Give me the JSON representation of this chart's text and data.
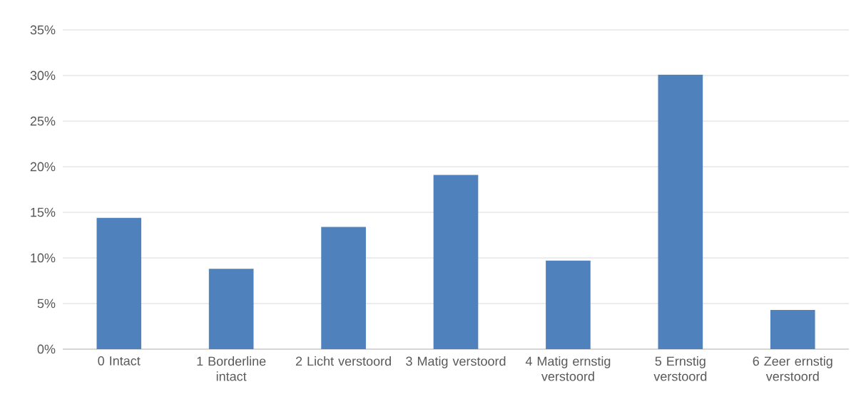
{
  "chart_data": {
    "type": "bar",
    "categories": [
      "0 Intact",
      "1 Borderline intact",
      "2 Licht verstoord",
      "3 Matig verstoord",
      "4 Matig ernstig verstoord",
      "5 Ernstig verstoord",
      "6 Zeer ernstig verstoord"
    ],
    "values": [
      14.4,
      8.8,
      13.4,
      19.1,
      9.7,
      30.1,
      4.3
    ],
    "color": "#4f81bd",
    "ylim": [
      0,
      35
    ],
    "yticks": [
      {
        "value": 0,
        "label": "0%"
      },
      {
        "value": 5,
        "label": "5%"
      },
      {
        "value": 10,
        "label": "10%"
      },
      {
        "value": 15,
        "label": "15%"
      },
      {
        "value": 20,
        "label": "20%"
      },
      {
        "value": 25,
        "label": "25%"
      },
      {
        "value": 30,
        "label": "30%"
      },
      {
        "value": 35,
        "label": "35%"
      }
    ],
    "grid": "y"
  }
}
